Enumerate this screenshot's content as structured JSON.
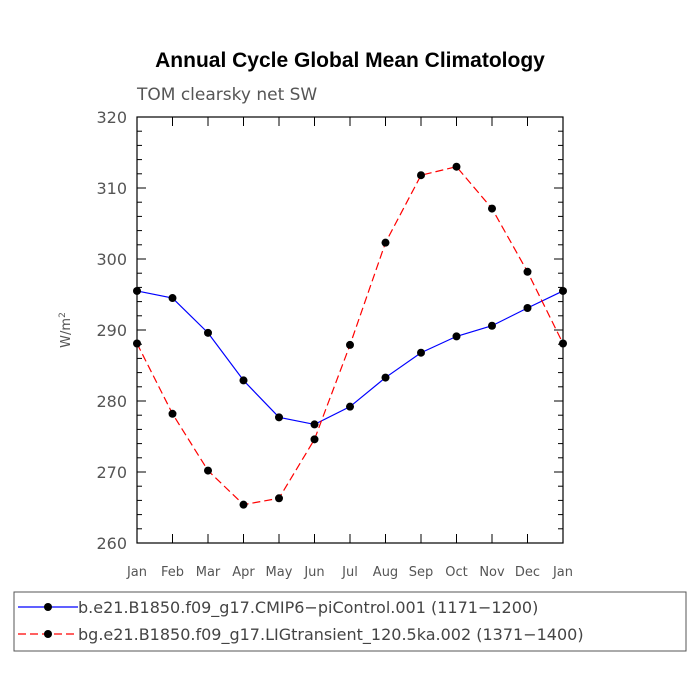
{
  "chart_data": {
    "type": "line",
    "title": "Annual Cycle Global Mean Climatology",
    "subtitle": "TOM clearsky net SW",
    "ylabel_base": "W/m",
    "ylabel_sup": "2",
    "xlabel": "",
    "categories": [
      "Jan",
      "Feb",
      "Mar",
      "Apr",
      "May",
      "Jun",
      "Jul",
      "Aug",
      "Sep",
      "Oct",
      "Nov",
      "Dec",
      "Jan"
    ],
    "ylim": [
      260,
      320
    ],
    "yticks": [
      260,
      270,
      280,
      290,
      300,
      310,
      320
    ],
    "grid": false,
    "legend_position": "bottom",
    "series": [
      {
        "name": "b.e21.B1850.f09_g17.CMIP6−piControl.001 (1171−1200)",
        "color": "#0000ff",
        "line_style": "solid",
        "marker": "filled-circle",
        "values": [
          295.5,
          294.5,
          289.6,
          282.9,
          277.7,
          276.7,
          279.2,
          283.3,
          286.8,
          289.1,
          290.6,
          293.1,
          295.5
        ]
      },
      {
        "name": "bg.e21.B1850.f09_g17.LIGtransient_120.5ka.002 (1371−1400)",
        "color": "#ff0000",
        "line_style": "dashed",
        "marker": "filled-circle",
        "values": [
          288.1,
          278.2,
          270.2,
          265.4,
          266.3,
          274.6,
          287.9,
          302.3,
          311.8,
          313.0,
          307.1,
          298.2,
          288.1
        ]
      }
    ]
  }
}
